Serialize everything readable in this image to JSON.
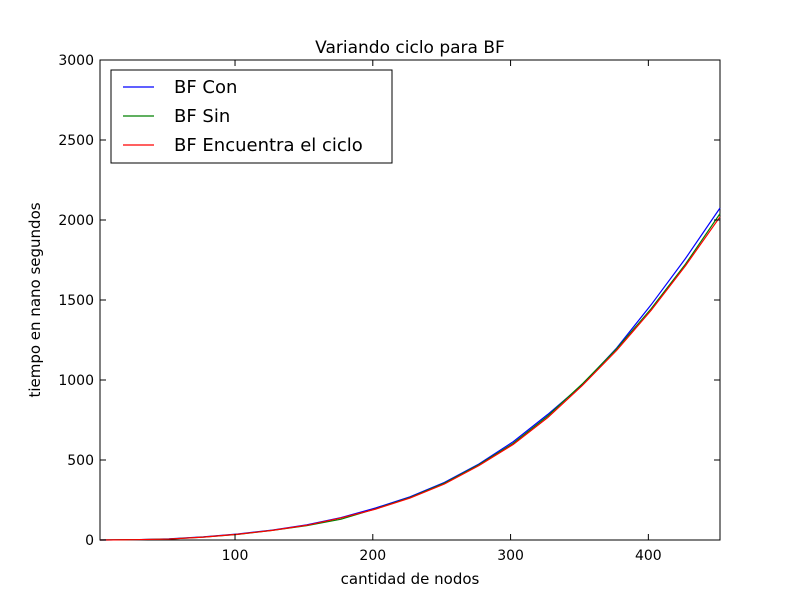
{
  "chart_data": {
    "type": "line",
    "title": "Variando ciclo para BF",
    "xlabel": "cantidad de nodos",
    "ylabel": "tiempo en nano segundos",
    "xlim": [
      2,
      452
    ],
    "ylim": [
      0,
      3000
    ],
    "xticks": [
      100,
      200,
      300,
      400
    ],
    "yticks": [
      0,
      500,
      1000,
      1500,
      2000,
      2500,
      3000
    ],
    "grid": false,
    "legend_position": "top-left",
    "x": [
      2,
      27,
      52,
      77,
      102,
      127,
      152,
      177,
      202,
      227,
      252,
      277,
      302,
      327,
      352,
      377,
      402,
      427,
      452
    ],
    "series": [
      {
        "name": "BF Con",
        "color": "#0000ff",
        "values": [
          0,
          2,
          7,
          20,
          38,
          62,
          95,
          140,
          200,
          270,
          360,
          475,
          615,
          785,
          970,
          1200,
          1470,
          1760,
          2075
        ]
      },
      {
        "name": "BF Sin",
        "color": "#008000",
        "values": [
          0,
          2,
          6,
          18,
          35,
          60,
          90,
          130,
          195,
          265,
          355,
          470,
          605,
          775,
          975,
          1195,
          1445,
          1725,
          2040
        ]
      },
      {
        "name": "BF Encuentra el ciclo",
        "color": "#ff0000",
        "values": [
          0,
          2,
          6,
          18,
          36,
          60,
          92,
          138,
          193,
          262,
          350,
          465,
          598,
          765,
          965,
          1185,
          1435,
          1715,
          2020
        ]
      }
    ]
  }
}
